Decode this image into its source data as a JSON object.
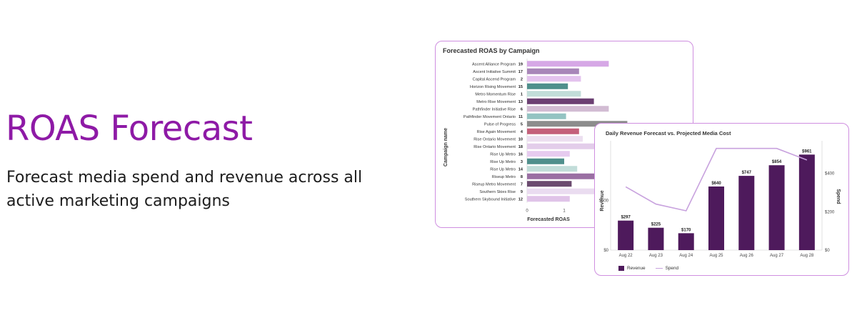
{
  "hero": {
    "title": "ROAS Forecast",
    "subtitle": "Forecast media spend and revenue across all active marketing campaigns"
  },
  "chart_data": [
    {
      "type": "bar",
      "orientation": "horizontal",
      "title": "Forecasted ROAS by Campaign",
      "xlabel": "Forecasted ROAS",
      "ylabel": "Campaign name",
      "x_ticks": [
        "0",
        "1"
      ],
      "xlim": [
        0,
        3
      ],
      "categories": [
        "Ascent Alliance Program",
        "Ascent Initiative Summit",
        "Capital Ascend Program",
        "Horizon Rising Movement",
        "Metro Momentum Rise",
        "Metro Rise Movement",
        "Pathfinder Initiative Rise",
        "Pathfinder Movement Ontario",
        "Pulse of Progress",
        "Rise Again Movement",
        "Rise Ontario Movement",
        "Rise Ontario Movement",
        "Rise Up Metro",
        "Rise Up Metro",
        "Rise Up Metro",
        "Riseup Metro",
        "Riseup Metro Movement",
        "Southern Skies Rise",
        "Southern Skybound Initiative"
      ],
      "ranks": [
        "19",
        "17",
        "2",
        "15",
        "1",
        "13",
        "6",
        "11",
        "5",
        "4",
        "10",
        "18",
        "16",
        "3",
        "14",
        "8",
        "7",
        "9",
        "12"
      ],
      "values": [
        2.2,
        1.4,
        1.45,
        1.1,
        1.45,
        1.8,
        2.2,
        1.05,
        2.7,
        1.4,
        1.5,
        2.6,
        1.15,
        1.0,
        1.35,
        2.6,
        1.2,
        2.6,
        1.15
      ],
      "colors": [
        "#d6a8e6",
        "#a886b8",
        "#e4c3ee",
        "#4f8f8c",
        "#c2ddd9",
        "#6b3f72",
        "#d2bcd3",
        "#93c3c2",
        "#8c8c8c",
        "#c4607a",
        "#ecdff0",
        "#e3cdea",
        "#e6cbef",
        "#4f8f8c",
        "#c2ddd9",
        "#9a6fa3",
        "#6b4a6f",
        "#eadcf0",
        "#e0c4e8"
      ]
    },
    {
      "type": "bar+line",
      "title": "Daily Revenue Forecast vs. Projected Media Cost",
      "ylabel": "Revenue",
      "y2label": "Spend",
      "categories": [
        "Aug 22",
        "Aug 23",
        "Aug 24",
        "Aug 25",
        "Aug 26",
        "Aug 27",
        "Aug 28"
      ],
      "series": [
        {
          "name": "Revenue",
          "type": "bar",
          "values": [
            297,
            225,
            170,
            640,
            747,
            854,
            961
          ],
          "labels": [
            "$297",
            "$225",
            "$170",
            "$640",
            "$747",
            "$854",
            "$961"
          ],
          "color": "#4e1a5c"
        },
        {
          "name": "Spend",
          "type": "line",
          "values": [
            330,
            240,
            205,
            530,
            530,
            530,
            470
          ],
          "color": "#c8a2de"
        }
      ],
      "ylim": [
        0,
        1100
      ],
      "y_ticks": [
        {
          "v": 0,
          "label": "$0"
        },
        {
          "v": 500,
          "label": "$500"
        }
      ],
      "y2lim": [
        0,
        570
      ],
      "y2_ticks": [
        {
          "v": 0,
          "label": "$0"
        },
        {
          "v": 200,
          "label": "$200"
        },
        {
          "v": 400,
          "label": "$400"
        }
      ],
      "legend": "bottom-left"
    }
  ]
}
